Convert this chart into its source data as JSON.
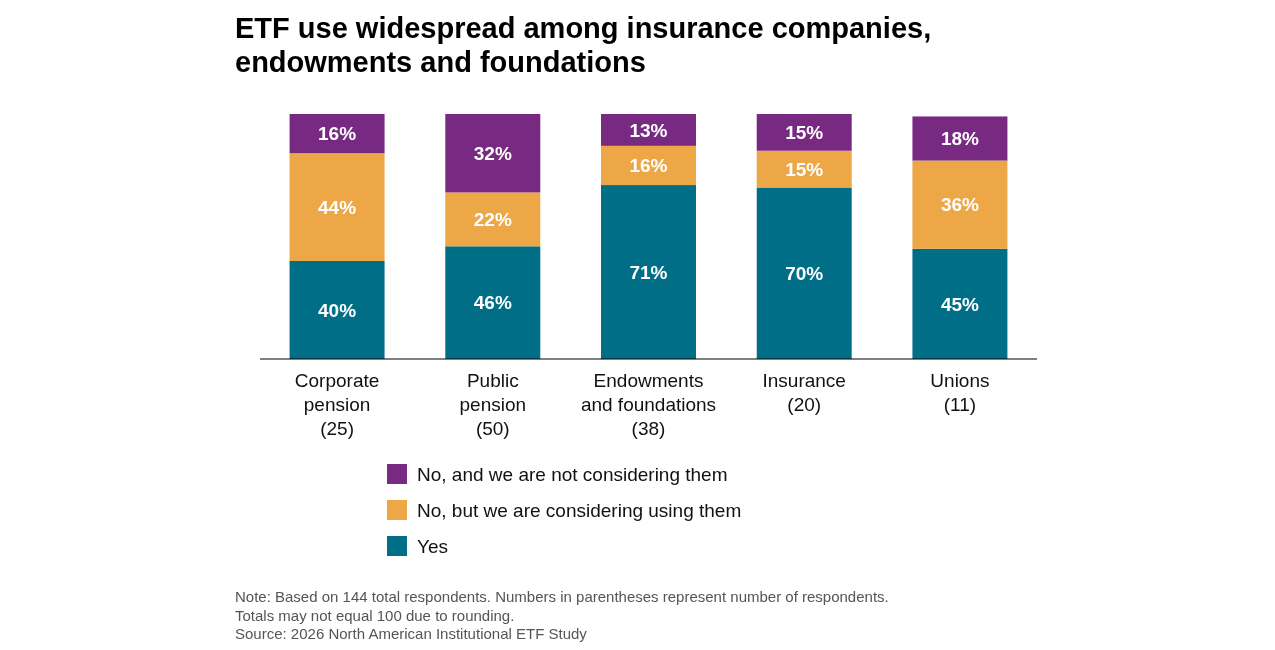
{
  "chart_data": {
    "type": "bar",
    "stacked": true,
    "title": "ETF use widespread among insurance companies,\nendowments and foundations",
    "categories": [
      "Corporate\npension\n(25)",
      "Public\npension\n(50)",
      "Endowments\nand foundations\n(38)",
      "Insurance\n(20)",
      "Unions\n(11)"
    ],
    "series": [
      {
        "name": "Yes",
        "color": "#006e87",
        "values": [
          40,
          46,
          71,
          70,
          45
        ],
        "value_labels": [
          "40%",
          "46%",
          "71%",
          "70%",
          "45%"
        ]
      },
      {
        "name": "No, but we are considering using them",
        "color": "#eea746",
        "values": [
          44,
          22,
          16,
          15,
          36
        ],
        "value_labels": [
          "44%",
          "22%",
          "16%",
          "15%",
          "36%"
        ]
      },
      {
        "name": "No, and we are not considering them",
        "color": "#782a83",
        "values": [
          16,
          32,
          13,
          15,
          18
        ],
        "value_labels": [
          "16%",
          "32%",
          "13%",
          "15%",
          "18%"
        ]
      }
    ],
    "legend": "bottom",
    "annotations": [
      "Note: Based on 144 total respondents. Numbers in parentheses represent number of respondents.",
      "Totals may not equal 100 due to rounding.",
      "Source: 2026 North American Institutional ETF Study"
    ]
  }
}
